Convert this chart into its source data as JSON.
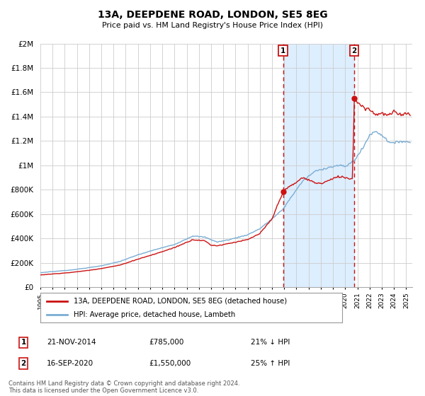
{
  "title": "13A, DEEPDENE ROAD, LONDON, SE5 8EG",
  "subtitle": "Price paid vs. HM Land Registry's House Price Index (HPI)",
  "ylabel_ticks": [
    "£0",
    "£200K",
    "£400K",
    "£600K",
    "£800K",
    "£1M",
    "£1.2M",
    "£1.4M",
    "£1.6M",
    "£1.8M",
    "£2M"
  ],
  "ytick_values": [
    0,
    200000,
    400000,
    600000,
    800000,
    1000000,
    1200000,
    1400000,
    1600000,
    1800000,
    2000000
  ],
  "ylim": [
    0,
    2000000
  ],
  "xlim_start": 1995.0,
  "xlim_end": 2025.5,
  "sale1_date": 2014.9,
  "sale1_price": 785000,
  "sale2_date": 2020.75,
  "sale2_price": 1550000,
  "sale1_label": "1",
  "sale2_label": "2",
  "sale1_text": "21-NOV-2014",
  "sale1_amount": "£785,000",
  "sale1_hpi_note": "21% ↓ HPI",
  "sale2_text": "16-SEP-2020",
  "sale2_amount": "£1,550,000",
  "sale2_hpi_note": "25% ↑ HPI",
  "hpi_color": "#7aadd4",
  "sale_line_color": "#cc1111",
  "vline_color": "#cc1111",
  "shade_color": "#ddeeff",
  "background_color": "#ffffff",
  "grid_color": "#cccccc",
  "legend_label_sale": "13A, DEEPDENE ROAD, LONDON, SE5 8EG (detached house)",
  "legend_label_hpi": "HPI: Average price, detached house, Lambeth",
  "footnote": "Contains HM Land Registry data © Crown copyright and database right 2024.\nThis data is licensed under the Open Government Licence v3.0."
}
